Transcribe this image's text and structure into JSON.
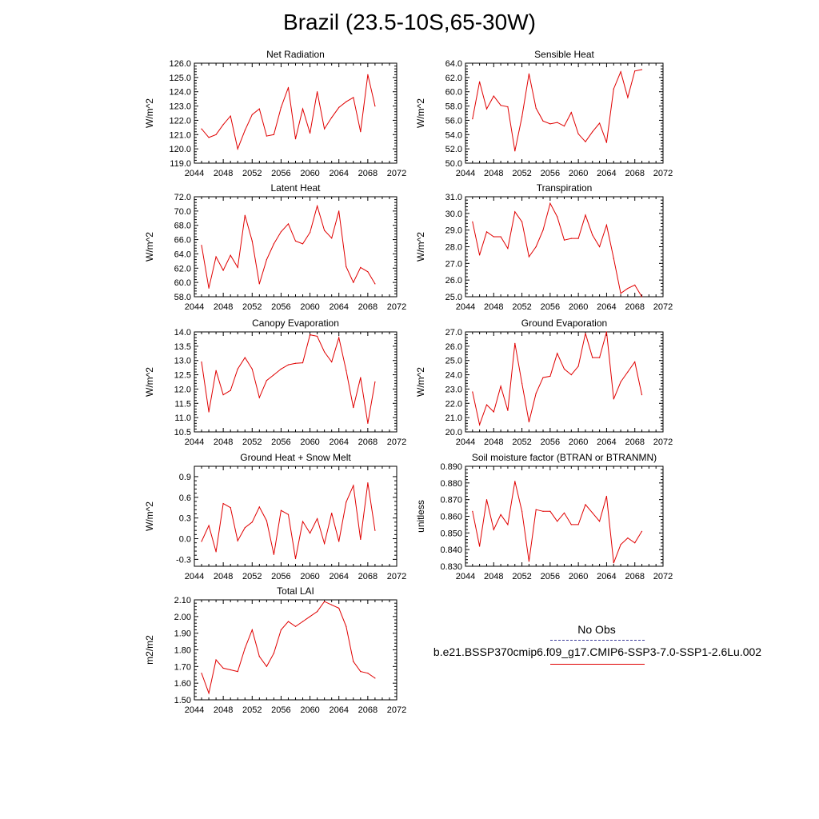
{
  "title": "Brazil (23.5-10S,65-30W)",
  "colors": {
    "series": "#e00000",
    "obs": "#3a3a9a"
  },
  "legend": {
    "obs_label": "No Obs",
    "model_label": "b.e21.BSSP370cmip6.f09_g17.CMIP6-SSP3-7.0-SSP1-2.6Lu.002"
  },
  "chart_data": [
    {
      "type": "line",
      "title": "Net Radiation",
      "ylabel": "W/m^2",
      "xlim": [
        2044,
        2072
      ],
      "ylim": [
        119.0,
        126.0
      ],
      "xticks": [
        "2044",
        "2048",
        "2052",
        "2056",
        "2060",
        "2064",
        "2068",
        "2072"
      ],
      "yticks": [
        "119.0",
        "120.0",
        "121.0",
        "122.0",
        "123.0",
        "124.0",
        "125.0",
        "126.0"
      ],
      "series": [
        {
          "name": "b.e21.BSSP370cmip6.f09_g17.CMIP6-SSP3-7.0-SSP1-2.6Lu.002",
          "x": [
            2045,
            2046,
            2047,
            2048,
            2049,
            2050,
            2051,
            2052,
            2053,
            2054,
            2055,
            2056,
            2057,
            2058,
            2059,
            2060,
            2061,
            2062,
            2063,
            2064,
            2065,
            2066,
            2067,
            2068,
            2069
          ],
          "values": [
            121.4,
            120.8,
            121.0,
            121.7,
            122.3,
            120.0,
            121.3,
            122.4,
            122.8,
            120.9,
            121.0,
            122.9,
            124.3,
            120.7,
            122.8,
            121.1,
            124.0,
            121.4,
            122.2,
            122.9,
            123.3,
            123.6,
            121.2,
            125.2,
            123.0
          ]
        }
      ]
    },
    {
      "type": "line",
      "title": "Sensible Heat",
      "ylabel": "W/m^2",
      "xlim": [
        2044,
        2072
      ],
      "ylim": [
        50.0,
        64.0
      ],
      "xticks": [
        "2044",
        "2048",
        "2052",
        "2056",
        "2060",
        "2064",
        "2068",
        "2072"
      ],
      "yticks": [
        "50.0",
        "52.0",
        "54.0",
        "56.0",
        "58.0",
        "60.0",
        "62.0",
        "64.0"
      ],
      "series": [
        {
          "name": "b.e21.BSSP370cmip6.f09_g17.CMIP6-SSP3-7.0-SSP1-2.6Lu.002",
          "x": [
            2045,
            2046,
            2047,
            2048,
            2049,
            2050,
            2051,
            2052,
            2053,
            2054,
            2055,
            2056,
            2057,
            2058,
            2059,
            2060,
            2061,
            2062,
            2063,
            2064,
            2065,
            2066,
            2067,
            2068,
            2069
          ],
          "values": [
            56.2,
            61.4,
            57.6,
            59.4,
            58.1,
            57.9,
            51.7,
            56.5,
            62.5,
            57.7,
            55.9,
            55.5,
            55.7,
            55.2,
            57.1,
            54.1,
            53.0,
            54.4,
            55.6,
            52.9,
            60.4,
            62.8,
            59.2,
            62.9,
            63.1
          ]
        }
      ]
    },
    {
      "type": "line",
      "title": "Latent Heat",
      "ylabel": "W/m^2",
      "xlim": [
        2044,
        2072
      ],
      "ylim": [
        58.0,
        72.0
      ],
      "xticks": [
        "2044",
        "2048",
        "2052",
        "2056",
        "2060",
        "2064",
        "2068",
        "2072"
      ],
      "yticks": [
        "58.0",
        "60.0",
        "62.0",
        "64.0",
        "66.0",
        "68.0",
        "70.0",
        "72.0"
      ],
      "series": [
        {
          "name": "b.e21.BSSP370cmip6.f09_g17.CMIP6-SSP3-7.0-SSP1-2.6Lu.002",
          "x": [
            2045,
            2046,
            2047,
            2048,
            2049,
            2050,
            2051,
            2052,
            2053,
            2054,
            2055,
            2056,
            2057,
            2058,
            2059,
            2060,
            2061,
            2062,
            2063,
            2064,
            2065,
            2066,
            2067,
            2068,
            2069
          ],
          "values": [
            65.2,
            59.2,
            63.6,
            61.7,
            63.8,
            62.1,
            69.4,
            65.8,
            59.8,
            63.2,
            65.4,
            67.1,
            68.2,
            65.8,
            65.4,
            67.0,
            70.7,
            67.3,
            66.2,
            70.0,
            62.2,
            60.0,
            62.1,
            61.5,
            59.8
          ]
        }
      ]
    },
    {
      "type": "line",
      "title": "Transpiration",
      "ylabel": "W/m^2",
      "xlim": [
        2044,
        2072
      ],
      "ylim": [
        25.0,
        31.0
      ],
      "xticks": [
        "2044",
        "2048",
        "2052",
        "2056",
        "2060",
        "2064",
        "2068",
        "2072"
      ],
      "yticks": [
        "25.0",
        "26.0",
        "27.0",
        "28.0",
        "29.0",
        "30.0",
        "31.0"
      ],
      "series": [
        {
          "name": "b.e21.BSSP370cmip6.f09_g17.CMIP6-SSP3-7.0-SSP1-2.6Lu.002",
          "x": [
            2045,
            2046,
            2047,
            2048,
            2049,
            2050,
            2051,
            2052,
            2053,
            2054,
            2055,
            2056,
            2057,
            2058,
            2059,
            2060,
            2061,
            2062,
            2063,
            2064,
            2065,
            2066,
            2067,
            2068,
            2069
          ],
          "values": [
            29.5,
            27.5,
            28.9,
            28.6,
            28.6,
            27.9,
            30.1,
            29.5,
            27.4,
            28.0,
            29.0,
            30.6,
            29.8,
            28.4,
            28.5,
            28.5,
            29.9,
            28.7,
            28.0,
            29.3,
            27.3,
            25.2,
            25.5,
            25.7,
            25.0
          ]
        }
      ]
    },
    {
      "type": "line",
      "title": "Canopy Evaporation",
      "ylabel": "W/m^2",
      "xlim": [
        2044,
        2072
      ],
      "ylim": [
        10.5,
        14.0
      ],
      "xticks": [
        "2044",
        "2048",
        "2052",
        "2056",
        "2060",
        "2064",
        "2068",
        "2072"
      ],
      "yticks": [
        "10.5",
        "11.0",
        "11.5",
        "12.0",
        "12.5",
        "13.0",
        "13.5",
        "14.0"
      ],
      "series": [
        {
          "name": "b.e21.BSSP370cmip6.f09_g17.CMIP6-SSP3-7.0-SSP1-2.6Lu.002",
          "x": [
            2045,
            2046,
            2047,
            2048,
            2049,
            2050,
            2051,
            2052,
            2053,
            2054,
            2055,
            2056,
            2057,
            2058,
            2059,
            2060,
            2061,
            2062,
            2063,
            2064,
            2065,
            2066,
            2067,
            2068,
            2069
          ],
          "values": [
            12.95,
            11.2,
            12.65,
            11.8,
            11.95,
            12.7,
            13.1,
            12.7,
            11.7,
            12.3,
            12.5,
            12.7,
            12.85,
            12.9,
            12.92,
            13.9,
            13.85,
            13.3,
            12.95,
            13.8,
            12.65,
            11.35,
            12.4,
            10.8,
            12.25
          ]
        }
      ]
    },
    {
      "type": "line",
      "title": "Ground Evaporation",
      "ylabel": "W/m^2",
      "xlim": [
        2044,
        2072
      ],
      "ylim": [
        20.0,
        27.0
      ],
      "xticks": [
        "2044",
        "2048",
        "2052",
        "2056",
        "2060",
        "2064",
        "2068",
        "2072"
      ],
      "yticks": [
        "20.0",
        "21.0",
        "22.0",
        "23.0",
        "24.0",
        "25.0",
        "26.0",
        "27.0"
      ],
      "series": [
        {
          "name": "b.e21.BSSP370cmip6.f09_g17.CMIP6-SSP3-7.0-SSP1-2.6Lu.002",
          "x": [
            2045,
            2046,
            2047,
            2048,
            2049,
            2050,
            2051,
            2052,
            2053,
            2054,
            2055,
            2056,
            2057,
            2058,
            2059,
            2060,
            2061,
            2062,
            2063,
            2064,
            2065,
            2066,
            2067,
            2068,
            2069
          ],
          "values": [
            22.8,
            20.5,
            21.9,
            21.4,
            23.2,
            21.5,
            26.2,
            23.4,
            20.7,
            22.7,
            23.8,
            23.9,
            25.5,
            24.4,
            24.0,
            24.6,
            26.9,
            25.2,
            25.2,
            27.0,
            22.3,
            23.5,
            24.2,
            24.9,
            22.6
          ]
        }
      ]
    },
    {
      "type": "line",
      "title": "Ground Heat + Snow Melt",
      "ylabel": "W/m^2",
      "xlim": [
        2044,
        2072
      ],
      "ylim": [
        -0.4,
        1.05
      ],
      "xticks": [
        "2044",
        "2048",
        "2052",
        "2056",
        "2060",
        "2064",
        "2068",
        "2072"
      ],
      "yticks": [
        "-0.3",
        "0.0",
        "0.3",
        "0.6",
        "0.9"
      ],
      "ytick_values": [
        -0.3,
        0.0,
        0.3,
        0.6,
        0.9
      ],
      "series": [
        {
          "name": "b.e21.BSSP370cmip6.f09_g17.CMIP6-SSP3-7.0-SSP1-2.6Lu.002",
          "x": [
            2045,
            2046,
            2047,
            2048,
            2049,
            2050,
            2051,
            2052,
            2053,
            2054,
            2055,
            2056,
            2057,
            2058,
            2059,
            2060,
            2061,
            2062,
            2063,
            2064,
            2065,
            2066,
            2067,
            2068,
            2069
          ],
          "values": [
            -0.04,
            0.19,
            -0.19,
            0.51,
            0.45,
            -0.03,
            0.16,
            0.24,
            0.46,
            0.26,
            -0.23,
            0.41,
            0.35,
            -0.29,
            0.25,
            0.08,
            0.29,
            -0.07,
            0.37,
            -0.04,
            0.53,
            0.77,
            -0.01,
            0.81,
            0.12
          ]
        }
      ]
    },
    {
      "type": "line",
      "title": "Soil moisture factor (BTRAN or BTRANMN)",
      "ylabel": "unitless",
      "xlim": [
        2044,
        2072
      ],
      "ylim": [
        0.83,
        0.89
      ],
      "xticks": [
        "2044",
        "2048",
        "2052",
        "2056",
        "2060",
        "2064",
        "2068",
        "2072"
      ],
      "yticks": [
        "0.830",
        "0.840",
        "0.850",
        "0.860",
        "0.870",
        "0.880",
        "0.890"
      ],
      "series": [
        {
          "name": "b.e21.BSSP370cmip6.f09_g17.CMIP6-SSP3-7.0-SSP1-2.6Lu.002",
          "x": [
            2045,
            2046,
            2047,
            2048,
            2049,
            2050,
            2051,
            2052,
            2053,
            2054,
            2055,
            2056,
            2057,
            2058,
            2059,
            2060,
            2061,
            2062,
            2063,
            2064,
            2065,
            2066,
            2067,
            2068,
            2069
          ],
          "values": [
            0.863,
            0.842,
            0.87,
            0.852,
            0.861,
            0.855,
            0.881,
            0.863,
            0.833,
            0.864,
            0.863,
            0.863,
            0.857,
            0.862,
            0.855,
            0.855,
            0.867,
            0.862,
            0.857,
            0.872,
            0.832,
            0.843,
            0.847,
            0.844,
            0.851
          ]
        }
      ]
    },
    {
      "type": "line",
      "title": "Total LAI",
      "ylabel": "m2/m2",
      "xlim": [
        2044,
        2072
      ],
      "ylim": [
        1.5,
        2.1
      ],
      "xticks": [
        "2044",
        "2048",
        "2052",
        "2056",
        "2060",
        "2064",
        "2068",
        "2072"
      ],
      "yticks": [
        "1.50",
        "1.60",
        "1.70",
        "1.80",
        "1.90",
        "2.00",
        "2.10"
      ],
      "series": [
        {
          "name": "b.e21.BSSP370cmip6.f09_g17.CMIP6-SSP3-7.0-SSP1-2.6Lu.002",
          "x": [
            2045,
            2046,
            2047,
            2048,
            2049,
            2050,
            2051,
            2052,
            2053,
            2054,
            2055,
            2056,
            2057,
            2058,
            2059,
            2060,
            2061,
            2062,
            2063,
            2064,
            2065,
            2066,
            2067,
            2068,
            2069
          ],
          "values": [
            1.66,
            1.54,
            1.74,
            1.69,
            1.68,
            1.67,
            1.81,
            1.92,
            1.76,
            1.7,
            1.78,
            1.92,
            1.97,
            1.94,
            1.97,
            2.0,
            2.03,
            2.09,
            2.07,
            2.05,
            1.94,
            1.73,
            1.67,
            1.66,
            1.63
          ]
        }
      ]
    }
  ]
}
